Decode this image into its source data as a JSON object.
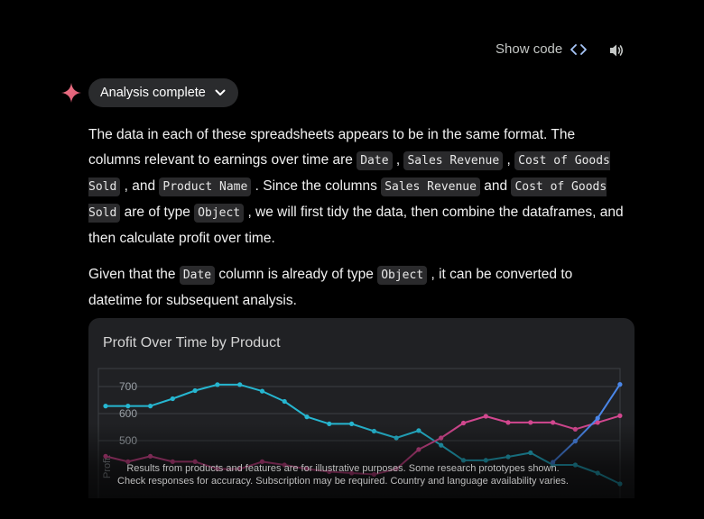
{
  "header": {
    "show_code_label": "Show code",
    "code_icon": "code-brackets-icon",
    "speaker_icon": "speaker-icon"
  },
  "status": {
    "label": "Analysis complete",
    "icon": "sparkle-icon",
    "chevron_icon": "chevron-down-icon",
    "accent": "#e8657b"
  },
  "message": {
    "p1": {
      "t1": "The data in each of these spreadsheets appears to be in the same format. The columns relevant to earnings over time are ",
      "c1": "Date",
      "t2": " , ",
      "c2": "Sales Revenue",
      "t3": " , ",
      "c3": "Cost of Goods Sold",
      "t4": " , and ",
      "c4": "Product Name",
      "t5": " . Since the columns ",
      "c5": "Sales Revenue",
      "t6": " and ",
      "c6": "Cost of Goods Sold",
      "t7": " are of type ",
      "c7": "Object",
      "t8": " , we will first tidy the data, then combine the dataframes, and then calculate profit over time."
    },
    "p2": {
      "t1": "Given that the ",
      "c1": "Date",
      "t2": " column is already of type ",
      "c2": "Object",
      "t3": " , it can be converted to datetime for subsequent analysis."
    }
  },
  "chart_data": {
    "type": "line",
    "title": "Profit Over Time by Product",
    "ylabel": "Profit",
    "yticks": [
      700,
      600,
      500
    ],
    "ylim": [
      380,
      760
    ],
    "grid": true,
    "x_count": 24,
    "series": [
      {
        "color": "#26b6d0",
        "values": [
          628,
          628,
          628,
          655,
          685,
          707,
          707,
          683,
          645,
          588,
          562,
          562,
          535,
          510,
          537,
          483,
          427,
          427,
          440,
          455,
          410,
          410,
          380,
          340
        ]
      },
      {
        "color": "#d2478f",
        "values": [
          442,
          422,
          442,
          422,
          422,
          395,
          395,
          422,
          410,
          395,
          385,
          380,
          375,
          395,
          467,
          510,
          565,
          590,
          567,
          567,
          567,
          542,
          567,
          592
        ]
      },
      {
        "color": "#4a86e8",
        "values": [
          null,
          null,
          null,
          null,
          null,
          null,
          null,
          null,
          null,
          null,
          null,
          null,
          null,
          null,
          null,
          null,
          null,
          null,
          null,
          null,
          420,
          498,
          583,
          708
        ]
      }
    ]
  },
  "footer": {
    "line1": "Results from products and features are for illustrative purposes. Some research prototypes shown.",
    "line2": "Check responses for accuracy. Subscription may be required. Country and language availability varies."
  }
}
